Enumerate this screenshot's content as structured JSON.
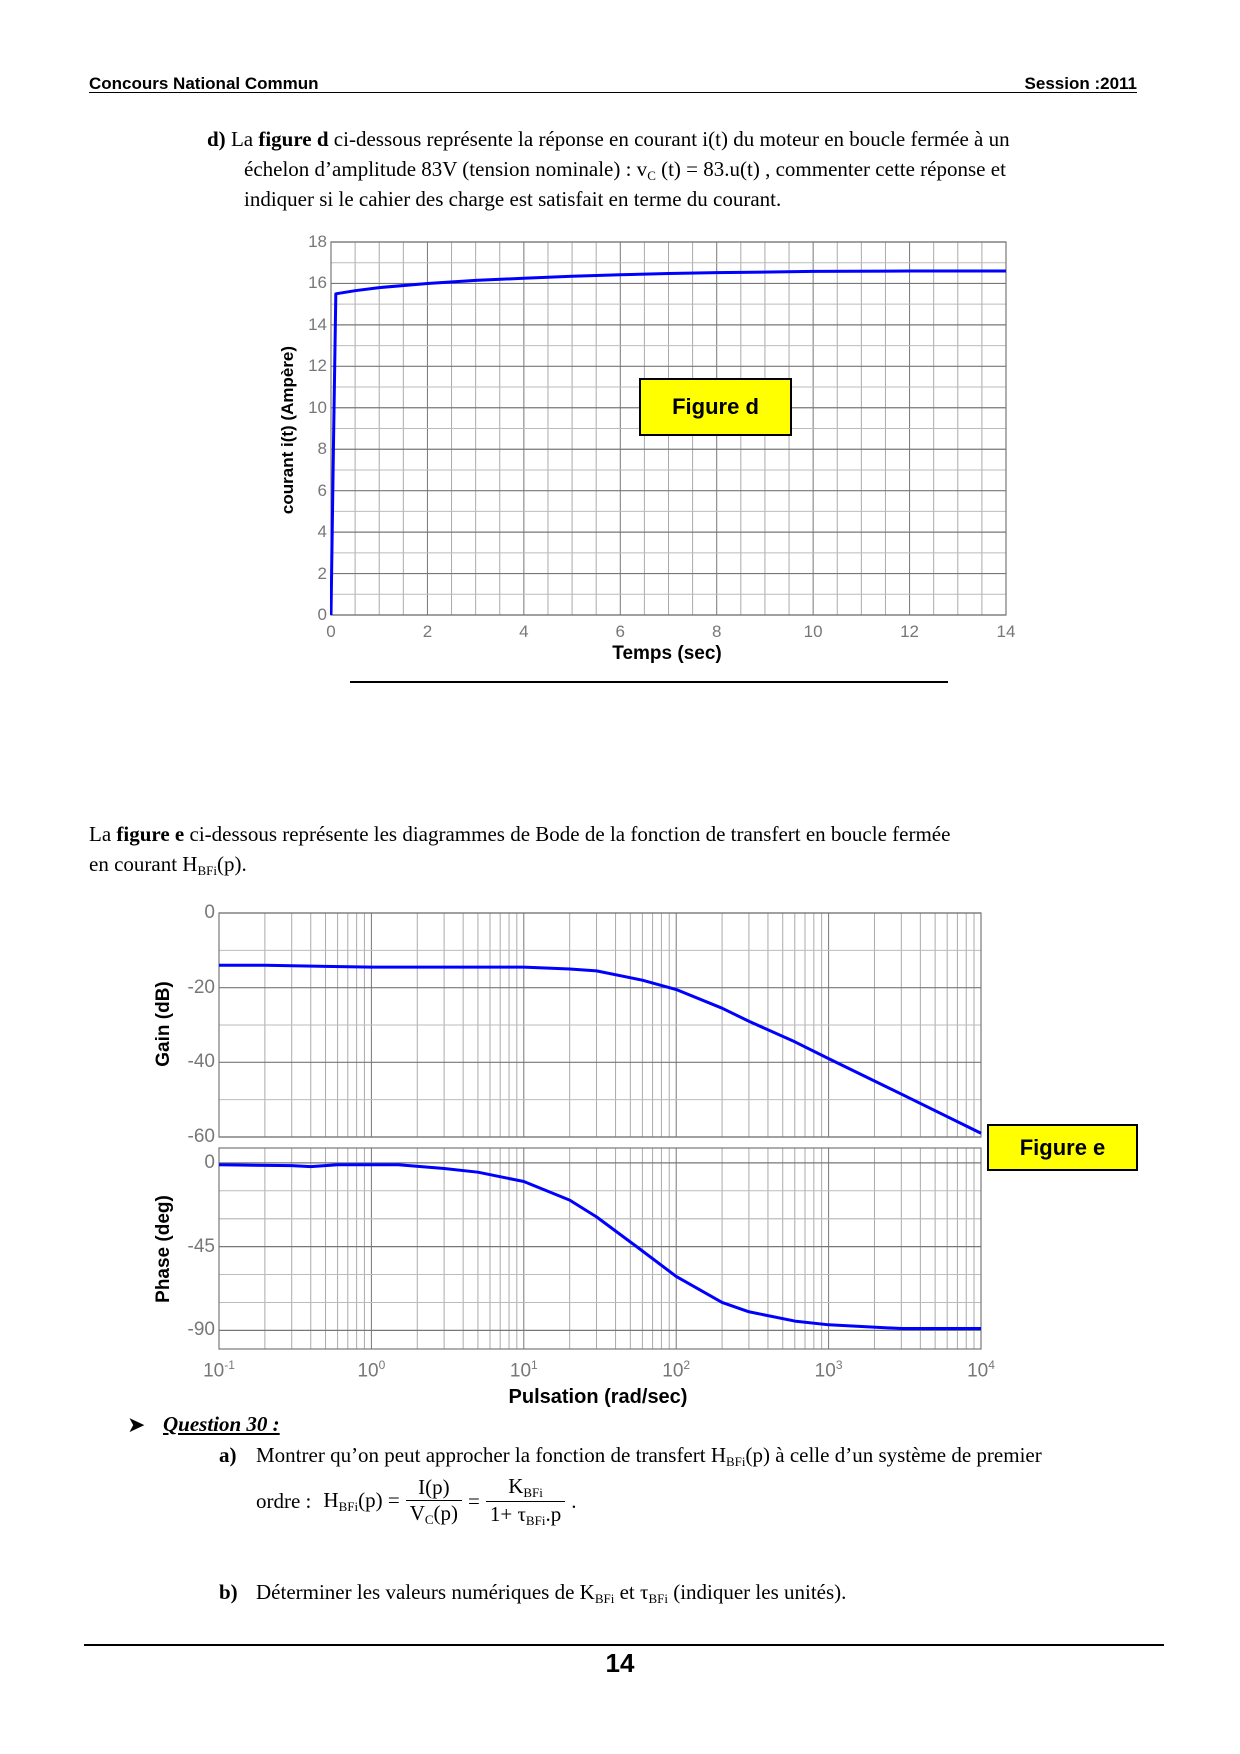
{
  "header": {
    "left": "Concours National Commun",
    "right": "Session :2011"
  },
  "part_d": {
    "marker": "d)",
    "l1a": "La ",
    "l1b": "figure d",
    "l1c": " ci-dessous  représente la réponse  en courant i(t) du moteur en boucle fermée à un",
    "l2a": "échelon d’amplitude 83V (tension nominale) : v",
    "l2sub": "C",
    "l2b": " (t) = 83.u(t) , commenter cette réponse et",
    "l3": "indiquer si le cahier des charge est satisfait en terme du courant."
  },
  "part_e": {
    "l1a": "La ",
    "l1b": "figure e",
    "l1c": " ci-dessous représente les diagrammes de Bode de la fonction de transfert en boucle fermée",
    "l2a": "en courant H",
    "l2sub": "BFi",
    "l2b": "(p)."
  },
  "question": {
    "title": "Question 30 :",
    "a_marker": "a)",
    "a_l1a": "Montrer qu’on peut approcher la fonction de transfert H",
    "a_l1sub": "BFi",
    "a_l1b": "(p) à celle d’un système de premier",
    "a_l2": "ordre :",
    "f_H": "H",
    "f_Hsub": "BFi",
    "f_Hp": "(p) =",
    "f_num1": "I(p)",
    "f_den1a": "V",
    "f_den1sub": "C",
    "f_den1b": "(p)",
    "f_eq": "=",
    "f_num2a": "K",
    "f_num2sub": "BFi",
    "f_den2a": "1+ τ",
    "f_den2sub": "BFi",
    "f_den2b": ".p",
    "f_end": ".",
    "b_marker": "b)",
    "b_a": "Déterminer les valeurs numériques de K",
    "b_sub1": "BFi",
    "b_b": " et τ",
    "b_sub2": "BFi",
    "b_c": " (indiquer les unités)."
  },
  "page_number": "14",
  "colors": {
    "curve": "#0000ff",
    "label_box": "#ffff00",
    "grid": "#808080"
  },
  "chart_data": [
    {
      "type": "line",
      "title": "Figure d",
      "label": "Figure d",
      "xlabel": "Temps (sec)",
      "ylabel": "courant i(t)   (Ampère)",
      "xlim": [
        0,
        14
      ],
      "ylim": [
        0,
        18
      ],
      "xticks": [
        0,
        2,
        4,
        6,
        8,
        10,
        12,
        14
      ],
      "yticks": [
        0,
        2,
        4,
        6,
        8,
        10,
        12,
        14,
        16,
        18
      ],
      "grid": true,
      "x": [
        0,
        0.05,
        0.1,
        0.5,
        1,
        2,
        3,
        4,
        5,
        6,
        7,
        8,
        10,
        12,
        14
      ],
      "y": [
        0,
        8,
        15.5,
        15.65,
        15.8,
        16.0,
        16.15,
        16.25,
        16.35,
        16.42,
        16.48,
        16.52,
        16.58,
        16.6,
        16.6
      ]
    },
    {
      "type": "line",
      "title": "Figure e",
      "label": "Figure e",
      "xlabel": "Pulsation  (rad/sec)",
      "xscale": "log",
      "xlim": [
        0.1,
        10000
      ],
      "xtick_base": "10",
      "xtick_exponents": [
        "-1",
        "0",
        "1",
        "2",
        "3",
        "4"
      ],
      "panels": [
        {
          "ylabel": "Gain (dB)",
          "ylim": [
            -60,
            0
          ],
          "yticks": [
            0,
            -20,
            -40,
            -60
          ],
          "x": [
            0.1,
            0.2,
            0.5,
            1,
            3,
            10,
            20,
            30,
            60,
            100,
            200,
            300,
            600,
            1000,
            3000,
            10000
          ],
          "y": [
            -14,
            -14,
            -14.3,
            -14.5,
            -14.5,
            -14.5,
            -15,
            -15.5,
            -18,
            -20.5,
            -25.5,
            -29,
            -34.5,
            -39,
            -48.5,
            -59
          ]
        },
        {
          "ylabel": "Phase (deg)",
          "ylim": [
            -100,
            8
          ],
          "yticks": [
            0,
            -45,
            -90
          ],
          "x": [
            0.1,
            0.3,
            0.4,
            0.6,
            1,
            1.5,
            3,
            5,
            10,
            20,
            30,
            55,
            100,
            200,
            300,
            600,
            1000,
            3000,
            10000
          ],
          "y": [
            -1,
            -1.5,
            -2,
            -1,
            -1,
            -1,
            -3,
            -5,
            -10,
            -20,
            -29,
            -45,
            -61,
            -75,
            -80,
            -85,
            -87,
            -89,
            -89
          ]
        }
      ]
    }
  ]
}
